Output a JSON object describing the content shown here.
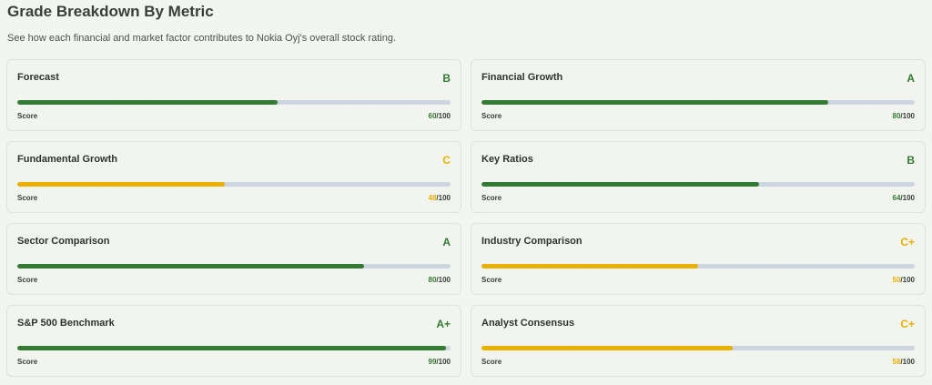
{
  "header": {
    "title": "Grade Breakdown By Metric",
    "subtitle": "See how each financial and market factor contributes to Nokia Oyj's overall stock rating."
  },
  "colors": {
    "good": "#347a32",
    "warn": "#e9b000"
  },
  "score_label": "Score",
  "score_suffix": "/100",
  "metrics": [
    {
      "name": "Forecast",
      "grade": "B",
      "score": 60,
      "status": "good"
    },
    {
      "name": "Financial Growth",
      "grade": "A",
      "score": 80,
      "status": "good"
    },
    {
      "name": "Fundamental Growth",
      "grade": "C",
      "score": 48,
      "status": "warn"
    },
    {
      "name": "Key Ratios",
      "grade": "B",
      "score": 64,
      "status": "good"
    },
    {
      "name": "Sector Comparison",
      "grade": "A",
      "score": 80,
      "status": "good"
    },
    {
      "name": "Industry Comparison",
      "grade": "C+",
      "score": 50,
      "status": "warn"
    },
    {
      "name": "S&P 500 Benchmark",
      "grade": "A+",
      "score": 99,
      "status": "good"
    },
    {
      "name": "Analyst Consensus",
      "grade": "C+",
      "score": 58,
      "status": "warn"
    }
  ]
}
